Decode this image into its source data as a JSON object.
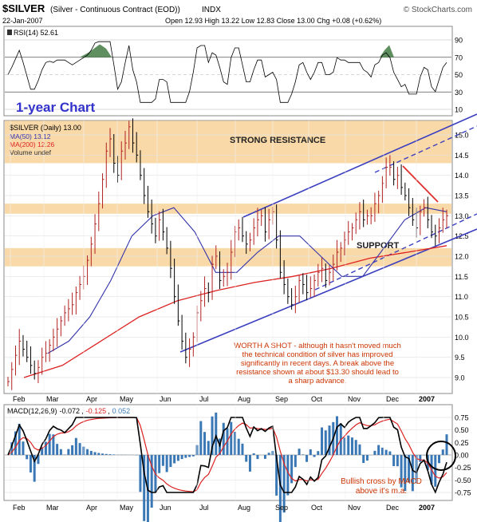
{
  "header": {
    "symbol": "$SILVER",
    "description": "(Silver - Continuous Contract (EOD))",
    "exchange": "INDX",
    "watermark": "© StockCharts.com",
    "date": "22-Jan-2007",
    "ohlc_text": "Open 12.93  High 13.22  Low 12.83  Close 13.00  Chg +0.08 (+0.62%)",
    "chg_arrow": "▲"
  },
  "rsi": {
    "label": "RSI(14) 52.61",
    "ticks": [
      "90",
      "70",
      "50",
      "30",
      "10"
    ],
    "tick_values": [
      90,
      70,
      50,
      30,
      10
    ]
  },
  "price": {
    "chart_title": "1-year Chart",
    "legend": [
      "$SILVER (Daily) 13.00",
      "MA(50) 13.12",
      "MA(200) 12.26",
      "Volume undef"
    ],
    "ticks": [
      "15.0",
      "14.5",
      "14.0",
      "13.5",
      "13.0",
      "12.5",
      "12.0",
      "11.5",
      "11.0",
      "10.5",
      "10.0",
      "9.5",
      "9.0"
    ],
    "tick_values": [
      15.0,
      14.5,
      14.0,
      13.5,
      13.0,
      12.5,
      12.0,
      11.5,
      11.0,
      10.5,
      10.0,
      9.5,
      9.0
    ],
    "resistance_label": "STRONG RESISTANCE",
    "support_label": "SUPPORT",
    "resistance_band": [
      14.3,
      15.35
    ],
    "minor_resistance_band": [
      13.05,
      13.3
    ],
    "support_band": [
      11.75,
      12.2
    ],
    "annotation_lines": [
      "WORTH A SHOT - although it hasn't moved much",
      "the technical condition of silver has improved",
      "significantly in recent days. A break above the",
      "resistance shown at about $13.30 should lead to",
      "a sharp advance."
    ]
  },
  "macd": {
    "label": "MACD(12,26,9)",
    "value_1": "-0.072",
    "value_2": "-0.125",
    "value_3": "0.052",
    "ticks": [
      "0.75",
      "0.50",
      "0.25",
      "0.00",
      "-0.25",
      "-0.50",
      "-0.75"
    ],
    "tick_values": [
      0.75,
      0.5,
      0.25,
      0.0,
      -0.25,
      -0.5,
      -0.75
    ],
    "annotation_lines": [
      "Bullish cross by MACD",
      "above it's m.a."
    ]
  },
  "x_axis": {
    "labels": [
      "Feb",
      "Mar",
      "Apr",
      "May",
      "Jun",
      "Jul",
      "Aug",
      "Sep",
      "Oct",
      "Nov",
      "Dec",
      "2007"
    ]
  },
  "colors": {
    "price_bars": "#8b0000",
    "ma50": "#3333aa",
    "ma200": "#dd2222",
    "band": "#f9d9a8",
    "channel": "#3b3fbf",
    "annotation_text": "#cc3300",
    "macd_line": "#000000",
    "signal_line": "#dd2222",
    "histogram": "#3a78b5",
    "rsi_fill": "#5f8f5f"
  },
  "chart_data": {
    "type": "line",
    "series": [
      {
        "name": "$SILVER (Daily) 13.00",
        "values": [
          8.9,
          9.2,
          9.55,
          9.9,
          9.7,
          9.5,
          9.3,
          9.1,
          9.25,
          9.5,
          9.6,
          9.8,
          10.0,
          10.2,
          10.4,
          10.6,
          10.7,
          10.8,
          11.1,
          11.3,
          11.5,
          11.9,
          12.3,
          12.8,
          13.3,
          13.9,
          14.6,
          14.9,
          14.3,
          14.0,
          14.6,
          14.8,
          15.2,
          14.8,
          14.5,
          14.0,
          13.5,
          13.1,
          12.8,
          12.5,
          12.9,
          12.6,
          12.2,
          11.7,
          11.0,
          10.4,
          9.9,
          9.5,
          9.7,
          10.0,
          10.6,
          10.9,
          11.2,
          11.1,
          11.8,
          12.0,
          11.4,
          11.5,
          11.6,
          12.1,
          12.6,
          12.7,
          12.5,
          12.3,
          12.4,
          12.7,
          12.9,
          13.0,
          12.6,
          12.9,
          13.1,
          12.4,
          11.6,
          11.3,
          11.0,
          10.8,
          11.0,
          11.4,
          11.3,
          11.1,
          11.2,
          11.4,
          11.6,
          11.7,
          11.4,
          11.6,
          11.8,
          12.1,
          12.2,
          12.4,
          12.6,
          12.7,
          12.9,
          13.1,
          12.9,
          13.0,
          13.0,
          13.3,
          13.5,
          13.8,
          14.2,
          14.2,
          13.9,
          14.0,
          13.7,
          13.5,
          13.2,
          12.9,
          12.7,
          13.1,
          13.2,
          12.9,
          12.6,
          12.5,
          12.7,
          12.9,
          13.0
        ]
      },
      {
        "name": "MA(50) 13.12",
        "values": [
          9.6,
          9.9,
          10.5,
          11.4,
          12.5,
          13.0,
          13.2,
          12.6,
          11.6,
          11.6,
          12.1,
          12.5,
          12.5,
          12.0,
          11.5,
          11.5,
          12.2,
          12.9,
          13.2,
          13.1
        ]
      },
      {
        "name": "MA(200) 12.26",
        "values": [
          9.0,
          9.3,
          9.9,
          10.5,
          10.9,
          11.15,
          11.35,
          11.5,
          11.7,
          11.95,
          12.1,
          12.26
        ]
      }
    ],
    "ylim": [
      8.7,
      15.5
    ],
    "macd_ylim": [
      -0.85,
      0.85
    ],
    "rsi_ylim": [
      5,
      95
    ]
  }
}
